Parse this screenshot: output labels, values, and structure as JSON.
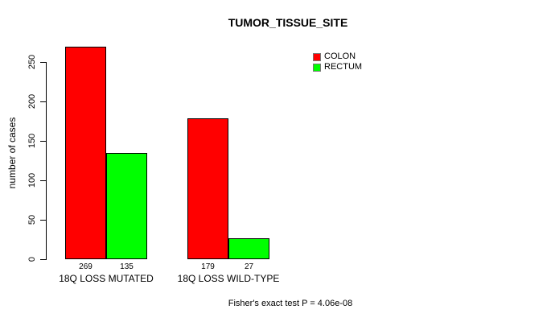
{
  "title": "TUMOR_TISSUE_SITE",
  "ylabel": "number of cases",
  "footer": "Fisher's exact test P = 4.06e-08",
  "legend": {
    "entries": [
      {
        "label": "COLON",
        "color": "#FF0000"
      },
      {
        "label": "RECTUM",
        "color": "#00FF00"
      }
    ]
  },
  "chart_data": {
    "type": "bar",
    "title": "TUMOR_TISSUE_SITE",
    "categories": [
      "18Q LOSS MUTATED",
      "18Q LOSS WILD-TYPE"
    ],
    "series": [
      {
        "name": "COLON",
        "color": "#FF0000",
        "values": [
          269,
          179
        ]
      },
      {
        "name": "RECTUM",
        "color": "#00FF00",
        "values": [
          135,
          27
        ]
      }
    ],
    "bar_value_labels": [
      [
        269,
        135
      ],
      [
        179,
        27
      ]
    ],
    "xlabel": "",
    "ylabel": "number of cases",
    "ylim": [
      0,
      270
    ],
    "yticks": [
      0,
      50,
      100,
      150,
      200,
      250
    ],
    "grid": false,
    "legend_position": "top-right",
    "annotation": "Fisher's exact test P = 4.06e-08"
  }
}
